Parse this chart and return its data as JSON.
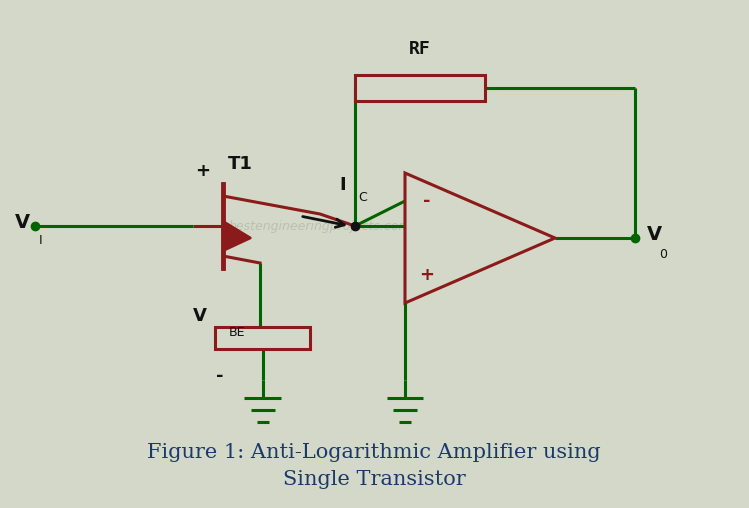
{
  "bg_color": "#d4d8c8",
  "wire_color": "#006400",
  "component_color": "#8b1a1a",
  "text_color": "#111111",
  "watermark_color": "#b8bcaa",
  "title": "Figure 1: Anti-Logarithmic Amplifier using\nSingle Transistor",
  "title_fontsize": 15,
  "rf_label": "RF",
  "ic_label": "I",
  "ic_sub": "C",
  "t1_label": "T1",
  "vi_label": "V",
  "vi_sub": "I",
  "vo_label": "V",
  "vo_sub": "0",
  "vbe_label": "V",
  "vbe_sub": "BE",
  "plus_label": "+",
  "minus_label": "-",
  "opamp_minus": "-",
  "opamp_plus": "+"
}
